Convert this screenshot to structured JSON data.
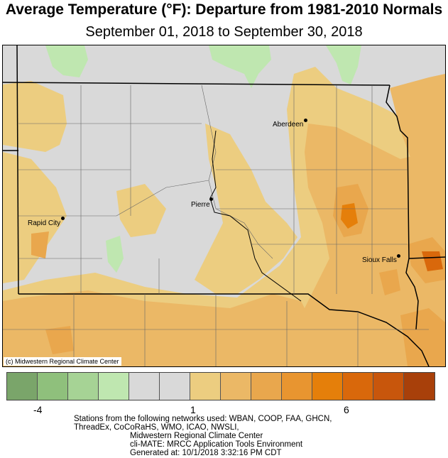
{
  "title": "Average Temperature (°F): Departure from 1981-2010 Normals",
  "subtitle": "September 01, 2018 to September 30, 2018",
  "credit": "(c) Midwestern Regional Climate Center",
  "cities": [
    {
      "name": "Aberdeen"
    },
    {
      "name": "Pierre"
    },
    {
      "name": "Rapid City"
    },
    {
      "name": "Sioux Falls"
    }
  ],
  "legend": {
    "colors": [
      "#7aa56a",
      "#8fc07c",
      "#a6d395",
      "#bfe7b0",
      "#d9d9d9",
      "#d9d9d9",
      "#eccd80",
      "#ebb866",
      "#e9a74d",
      "#e89530",
      "#e57f0a",
      "#d9680b",
      "#c8560c",
      "#a8400a"
    ],
    "ticks": [
      {
        "label": "-4",
        "value": -4
      },
      {
        "label": "1",
        "value": 1
      },
      {
        "label": "6",
        "value": 6
      }
    ]
  },
  "colors": {
    "neutral": "#d9d9d9",
    "cool": "#a6d395",
    "warm_light": "#eccd80",
    "warm_mid": "#e9a74d",
    "warm_high": "#e57f0a"
  },
  "footer": {
    "line1": "Stations from the following networks used: WBAN, COOP, FAA, GHCN,",
    "line2": "ThreadEx, CoCoRaHS, WMO, ICAO, NWSLI,",
    "line3": "Midwestern Regional Climate Center",
    "line4": "cli-MATE: MRCC Application Tools Environment",
    "line5": "Generated at: 10/1/2018 3:32:16 PM CDT"
  }
}
